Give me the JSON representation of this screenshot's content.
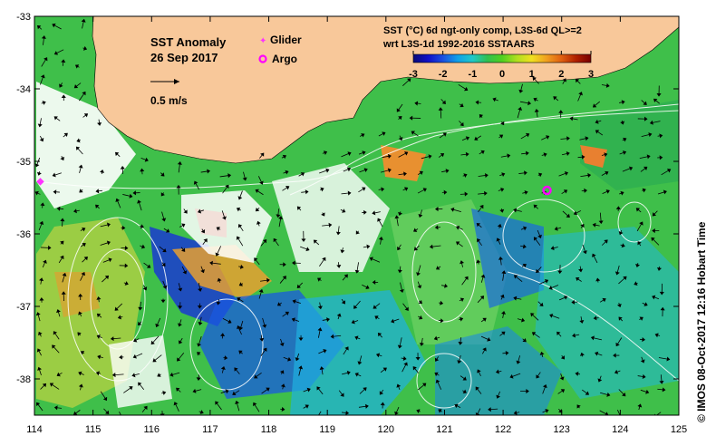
{
  "title": {
    "line1": "SST Anomaly",
    "line2": "26 Sep 2017"
  },
  "legend": {
    "glider_label": "Glider",
    "argo_label": "Argo",
    "glider_color": "#ff33ff",
    "argo_color": "#ff00ff"
  },
  "scale_arrow": {
    "label": "0.5 m/s"
  },
  "product": {
    "line1": "SST (°C) 6d ngt-only comp, L3S-6d QL>=2",
    "line2": "wrt L3S-1d 1992-2016 SSTAARS"
  },
  "colorbar": {
    "ticks": [
      "-3",
      "-2",
      "-1",
      "0",
      "1",
      "2",
      "3"
    ],
    "colors": [
      "#0a0a78",
      "#1010c8",
      "#1a4fe0",
      "#10a0e8",
      "#20c8c8",
      "#30c050",
      "#50d020",
      "#b0e020",
      "#f0e020",
      "#f0a020",
      "#e06010",
      "#b02000",
      "#780000"
    ]
  },
  "axes": {
    "x_ticks": [
      "114",
      "115",
      "116",
      "117",
      "118",
      "119",
      "120",
      "121",
      "122",
      "123",
      "124",
      "125"
    ],
    "y_ticks": [
      "-33",
      "-34",
      "-35",
      "-36",
      "-37",
      "-38"
    ],
    "lon_range": [
      114,
      125
    ],
    "lat_range": [
      -38.5,
      -33
    ]
  },
  "credit": "©  IMOS 08-Oct-2017 12:16 Hobart Time",
  "markers": {
    "argo": [
      {
        "lon": 122.75,
        "lat": -35.4
      }
    ],
    "glider": [
      {
        "lon": 114.1,
        "lat": -35.28
      }
    ]
  },
  "colors": {
    "land": "#f8c89a",
    "ocean_base": "#3fbf4a",
    "no_data": "#ffffff",
    "frame": "#000000"
  }
}
